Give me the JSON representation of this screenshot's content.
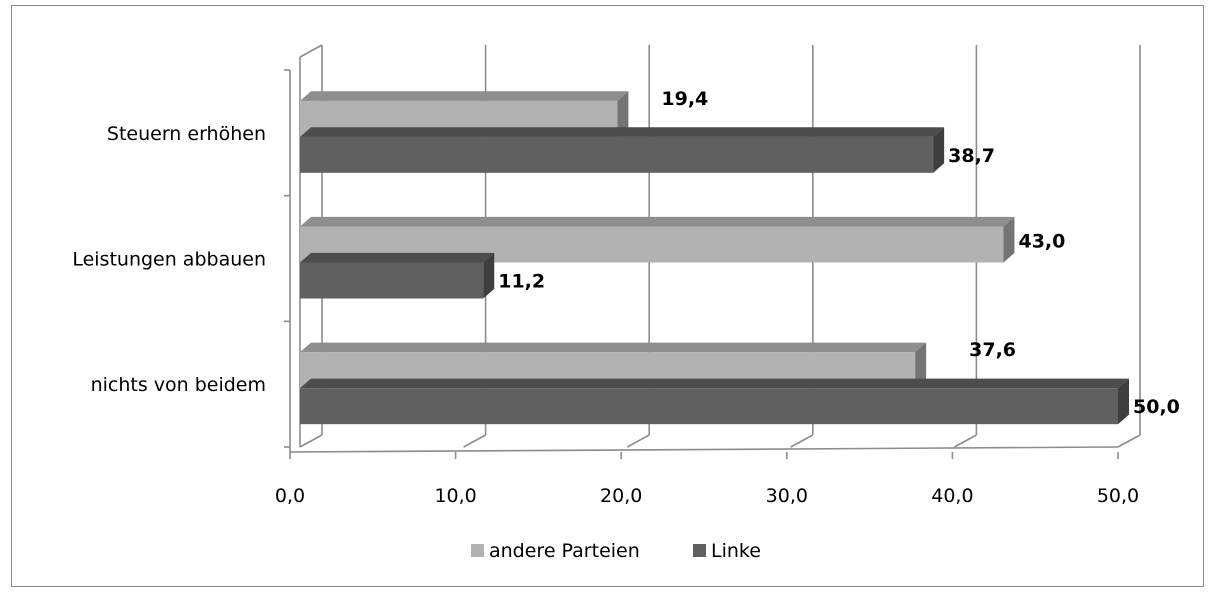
{
  "chart_data": {
    "type": "bar",
    "orientation": "horizontal",
    "three_d": true,
    "categories": [
      "Steuern erhöhen",
      "Leistungen abbauen",
      "nichts von beidem"
    ],
    "series": [
      {
        "name": "andere Parteien",
        "values": [
          19.4,
          43.0,
          37.6
        ],
        "labels": [
          "19,4",
          "43,0",
          "37,6"
        ],
        "color": "#b2b2b2"
      },
      {
        "name": "Linke",
        "values": [
          38.7,
          11.2,
          50.0
        ],
        "labels": [
          "38,7",
          "11,2",
          "50,0"
        ],
        "color": "#606060"
      }
    ],
    "xlim": [
      0,
      50
    ],
    "xticks": [
      0,
      10,
      20,
      30,
      40,
      50
    ],
    "xtick_labels": [
      "0,0",
      "10,0",
      "20,0",
      "30,0",
      "40,0",
      "50,0"
    ],
    "title": "",
    "xlabel": "",
    "ylabel": "",
    "grid": true,
    "legend_position": "bottom"
  }
}
